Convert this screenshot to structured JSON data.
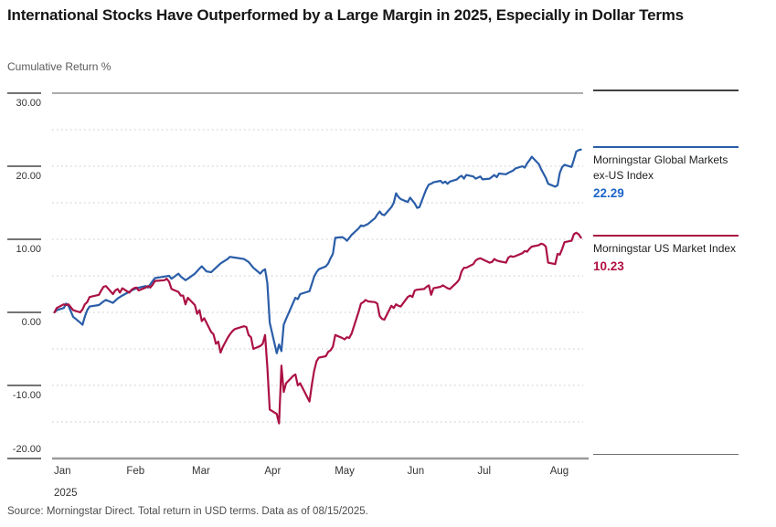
{
  "title": "International Stocks Have Outperformed by a Large Margin in 2025, Especially in Dollar Terms",
  "subtitle": "Cumulative Return %",
  "source": "Source: Morningstar Direct. Total return in USD terms. Data as of 08/15/2025.",
  "colors": {
    "ex_us_line": "#2a5da8",
    "ex_us_value": "#1c66c9",
    "us_line": "#ab1143",
    "us_value": "#b01242",
    "grid_dotted": "#d9d9d9",
    "frame_top": "#ababab",
    "frame_bottom": "#9a9a9a",
    "tick": "#474747",
    "axis_text": "#333333"
  },
  "legend": [
    {
      "label": "Morningstar Global Markets ex-US Index",
      "value": "22.29"
    },
    {
      "label": "Morningstar US Market Index",
      "value": "10.23"
    }
  ],
  "y_axis": {
    "ticks": [
      {
        "value": 30,
        "label": "30.00"
      },
      {
        "value": 20,
        "label": "20.00"
      },
      {
        "value": 10,
        "label": "10.00"
      },
      {
        "value": 0,
        "label": "0.00"
      },
      {
        "value": -10,
        "label": "-10.00"
      },
      {
        "value": -20,
        "label": "-20.00"
      }
    ]
  },
  "x_axis": {
    "year_label": "2025",
    "months": [
      {
        "label": "Jan",
        "day": 1
      },
      {
        "label": "Feb",
        "day": 32
      },
      {
        "label": "Mar",
        "day": 60
      },
      {
        "label": "Apr",
        "day": 91
      },
      {
        "label": "May",
        "day": 121
      },
      {
        "label": "Jun",
        "day": 152
      },
      {
        "label": "Jul",
        "day": 182
      },
      {
        "label": "Aug",
        "day": 213
      }
    ]
  },
  "chart_data": {
    "type": "line",
    "title": "International Stocks Have Outperformed by a Large Margin in 2025, Especially in Dollar Terms",
    "ylabel": "Cumulative Return %",
    "x_unit": "day_of_year_2025",
    "x_range_days": [
      1,
      230
    ],
    "ylim": [
      -20,
      30
    ],
    "y_tick_step": 10,
    "grid_step": 5,
    "grid_style": "dotted",
    "legend_position": "right",
    "series": [
      {
        "name": "Morningstar Global Markets ex-US Index",
        "color_key": "ex_us_line",
        "final_value": 22.29,
        "points": [
          [
            2,
            0
          ],
          [
            3,
            0.3
          ],
          [
            6,
            0.6
          ],
          [
            7,
            1.2
          ],
          [
            8,
            0.9
          ],
          [
            10,
            -0.6
          ],
          [
            13,
            -1.4
          ],
          [
            14,
            -1.7
          ],
          [
            15,
            -0.6
          ],
          [
            16,
            0.3
          ],
          [
            17,
            0.8
          ],
          [
            21,
            1.0
          ],
          [
            23,
            1.5
          ],
          [
            24,
            1.7
          ],
          [
            27,
            1.3
          ],
          [
            29,
            1.9
          ],
          [
            31,
            2.3
          ],
          [
            35,
            3.0
          ],
          [
            37,
            3.3
          ],
          [
            41,
            3.6
          ],
          [
            42,
            3.4
          ],
          [
            44,
            4.3
          ],
          [
            45,
            4.7
          ],
          [
            49,
            4.9
          ],
          [
            51,
            5.0
          ],
          [
            52,
            4.6
          ],
          [
            55,
            5.3
          ],
          [
            56,
            4.9
          ],
          [
            58,
            4.4
          ],
          [
            59,
            4.6
          ],
          [
            62,
            5.3
          ],
          [
            64,
            6.0
          ],
          [
            65,
            6.3
          ],
          [
            67,
            5.6
          ],
          [
            69,
            5.5
          ],
          [
            71,
            6.1
          ],
          [
            73,
            6.7
          ],
          [
            76,
            7.3
          ],
          [
            77,
            7.6
          ],
          [
            79,
            7.5
          ],
          [
            83,
            7.3
          ],
          [
            85,
            6.9
          ],
          [
            87,
            6.1
          ],
          [
            90,
            5.3
          ],
          [
            91,
            5.7
          ],
          [
            92,
            5.9
          ],
          [
            93,
            4.0
          ],
          [
            94,
            -1.4
          ],
          [
            97,
            -5.6
          ],
          [
            98,
            -4.4
          ],
          [
            99,
            -5.3
          ],
          [
            100,
            -1.7
          ],
          [
            101,
            -0.9
          ],
          [
            104,
            1.3
          ],
          [
            105,
            2.0
          ],
          [
            106,
            1.8
          ],
          [
            107,
            2.5
          ],
          [
            111,
            2.9
          ],
          [
            112,
            3.9
          ],
          [
            113,
            4.9
          ],
          [
            114,
            5.5
          ],
          [
            115,
            5.9
          ],
          [
            118,
            6.3
          ],
          [
            119,
            6.7
          ],
          [
            120,
            7.4
          ],
          [
            121,
            8.0
          ],
          [
            122,
            10.2
          ],
          [
            125,
            10.3
          ],
          [
            126,
            10.1
          ],
          [
            127,
            9.8
          ],
          [
            129,
            10.6
          ],
          [
            132,
            11.5
          ],
          [
            133,
            11.9
          ],
          [
            134,
            11.8
          ],
          [
            136,
            12.1
          ],
          [
            139,
            12.9
          ],
          [
            140,
            13.4
          ],
          [
            141,
            13.8
          ],
          [
            142,
            13.4
          ],
          [
            143,
            13.3
          ],
          [
            146,
            14.4
          ],
          [
            147,
            15.0
          ],
          [
            148,
            16.3
          ],
          [
            149,
            15.8
          ],
          [
            150,
            15.5
          ],
          [
            153,
            15.1
          ],
          [
            154,
            15.7
          ],
          [
            156,
            14.9
          ],
          [
            157,
            14.3
          ],
          [
            158,
            14.4
          ],
          [
            160,
            16.1
          ],
          [
            161,
            16.9
          ],
          [
            162,
            17.5
          ],
          [
            163,
            17.6
          ],
          [
            164,
            17.8
          ],
          [
            167,
            18.0
          ],
          [
            168,
            17.7
          ],
          [
            169,
            17.9
          ],
          [
            170,
            17.6
          ],
          [
            171,
            17.9
          ],
          [
            174,
            18.2
          ],
          [
            175,
            18.5
          ],
          [
            176,
            18.7
          ],
          [
            177,
            18.3
          ],
          [
            178,
            18.8
          ],
          [
            181,
            18.6
          ],
          [
            182,
            18.3
          ],
          [
            184,
            18.6
          ],
          [
            185,
            18.2
          ],
          [
            188,
            18.3
          ],
          [
            190,
            18.8
          ],
          [
            191,
            18.5
          ],
          [
            192,
            19.0
          ],
          [
            195,
            18.9
          ],
          [
            196,
            19.1
          ],
          [
            198,
            19.4
          ],
          [
            199,
            19.7
          ],
          [
            202,
            20.0
          ],
          [
            203,
            19.8
          ],
          [
            204,
            20.4
          ],
          [
            205,
            20.8
          ],
          [
            206,
            21.3
          ],
          [
            209,
            20.3
          ],
          [
            210,
            19.6
          ],
          [
            211,
            19.0
          ],
          [
            212,
            18.4
          ],
          [
            213,
            17.6
          ],
          [
            216,
            17.2
          ],
          [
            217,
            17.4
          ],
          [
            218,
            19.1
          ],
          [
            219,
            19.9
          ],
          [
            220,
            20.2
          ],
          [
            223,
            19.9
          ],
          [
            224,
            20.9
          ],
          [
            225,
            22.0
          ],
          [
            226,
            22.2
          ],
          [
            227,
            22.29
          ]
        ]
      },
      {
        "name": "Morningstar US Market Index",
        "color_key": "us_line",
        "final_value": 10.23,
        "points": [
          [
            2,
            0
          ],
          [
            3,
            0.6
          ],
          [
            6,
            1.1
          ],
          [
            7,
            1.0
          ],
          [
            8,
            1.1
          ],
          [
            10,
            0.3
          ],
          [
            13,
            0.0
          ],
          [
            14,
            0.4
          ],
          [
            15,
            1.1
          ],
          [
            16,
            1.4
          ],
          [
            17,
            2.1
          ],
          [
            21,
            2.4
          ],
          [
            22,
            3.0
          ],
          [
            23,
            3.5
          ],
          [
            24,
            3.6
          ],
          [
            27,
            2.5
          ],
          [
            28,
            3.0
          ],
          [
            29,
            3.2
          ],
          [
            30,
            2.7
          ],
          [
            31,
            3.3
          ],
          [
            34,
            2.7
          ],
          [
            35,
            3.1
          ],
          [
            36,
            3.3
          ],
          [
            37,
            3.4
          ],
          [
            38,
            3.0
          ],
          [
            41,
            3.4
          ],
          [
            42,
            3.6
          ],
          [
            43,
            3.4
          ],
          [
            44,
            3.8
          ],
          [
            45,
            4.3
          ],
          [
            49,
            4.4
          ],
          [
            50,
            4.6
          ],
          [
            51,
            4.2
          ],
          [
            52,
            3.2
          ],
          [
            55,
            2.8
          ],
          [
            56,
            2.3
          ],
          [
            57,
            2.3
          ],
          [
            58,
            1.1
          ],
          [
            59,
            2.0
          ],
          [
            62,
            1.0
          ],
          [
            63,
            -0.2
          ],
          [
            64,
            0.3
          ],
          [
            65,
            -1.2
          ],
          [
            66,
            -0.8
          ],
          [
            69,
            -2.7
          ],
          [
            70,
            -3.0
          ],
          [
            71,
            -4.3
          ],
          [
            72,
            -4.0
          ],
          [
            73,
            -5.5
          ],
          [
            74,
            -4.7
          ],
          [
            76,
            -3.5
          ],
          [
            77,
            -3.0
          ],
          [
            78,
            -2.6
          ],
          [
            79,
            -2.3
          ],
          [
            80,
            -2.2
          ],
          [
            83,
            -1.9
          ],
          [
            84,
            -2.0
          ],
          [
            85,
            -3.1
          ],
          [
            86,
            -3.4
          ],
          [
            87,
            -5.0
          ],
          [
            90,
            -4.6
          ],
          [
            91,
            -4.3
          ],
          [
            92,
            -3.1
          ],
          [
            93,
            -7.5
          ],
          [
            94,
            -13.3
          ],
          [
            97,
            -13.9
          ],
          [
            98,
            -15.2
          ],
          [
            99,
            -7.3
          ],
          [
            100,
            -10.9
          ],
          [
            101,
            -9.7
          ],
          [
            104,
            -8.7
          ],
          [
            105,
            -8.5
          ],
          [
            106,
            -10.0
          ],
          [
            107,
            -9.7
          ],
          [
            111,
            -12.2
          ],
          [
            112,
            -9.9
          ],
          [
            113,
            -8.0
          ],
          [
            114,
            -6.7
          ],
          [
            115,
            -6.2
          ],
          [
            118,
            -6.0
          ],
          [
            119,
            -5.4
          ],
          [
            120,
            -5.2
          ],
          [
            121,
            -4.7
          ],
          [
            122,
            -3.1
          ],
          [
            125,
            -3.5
          ],
          [
            126,
            -3.7
          ],
          [
            127,
            -3.4
          ],
          [
            128,
            -3.5
          ],
          [
            129,
            -2.9
          ],
          [
            132,
            0.1
          ],
          [
            133,
            1.2
          ],
          [
            134,
            1.4
          ],
          [
            135,
            1.7
          ],
          [
            136,
            1.5
          ],
          [
            139,
            1.4
          ],
          [
            140,
            1.2
          ],
          [
            141,
            -0.5
          ],
          [
            142,
            -0.9
          ],
          [
            143,
            -1.0
          ],
          [
            146,
            0.9
          ],
          [
            147,
            0.6
          ],
          [
            148,
            1.1
          ],
          [
            149,
            0.9
          ],
          [
            150,
            0.8
          ],
          [
            153,
            2.1
          ],
          [
            154,
            2.3
          ],
          [
            155,
            2.1
          ],
          [
            156,
            3.0
          ],
          [
            157,
            3.1
          ],
          [
            160,
            3.2
          ],
          [
            161,
            3.5
          ],
          [
            162,
            3.7
          ],
          [
            163,
            2.4
          ],
          [
            164,
            3.3
          ],
          [
            167,
            3.5
          ],
          [
            168,
            3.7
          ],
          [
            169,
            3.5
          ],
          [
            170,
            3.3
          ],
          [
            171,
            3.2
          ],
          [
            174,
            4.1
          ],
          [
            175,
            4.5
          ],
          [
            176,
            5.6
          ],
          [
            177,
            6.1
          ],
          [
            178,
            6.1
          ],
          [
            181,
            6.6
          ],
          [
            182,
            7.1
          ],
          [
            183,
            7.3
          ],
          [
            184,
            7.4
          ],
          [
            188,
            6.8
          ],
          [
            189,
            6.9
          ],
          [
            190,
            7.3
          ],
          [
            191,
            7.1
          ],
          [
            192,
            7.0
          ],
          [
            195,
            6.8
          ],
          [
            196,
            7.5
          ],
          [
            197,
            7.7
          ],
          [
            198,
            7.6
          ],
          [
            199,
            7.7
          ],
          [
            202,
            8.1
          ],
          [
            203,
            8.4
          ],
          [
            204,
            8.3
          ],
          [
            205,
            8.7
          ],
          [
            206,
            9.0
          ],
          [
            209,
            9.2
          ],
          [
            210,
            9.4
          ],
          [
            211,
            9.3
          ],
          [
            212,
            9.0
          ],
          [
            213,
            6.8
          ],
          [
            216,
            6.6
          ],
          [
            217,
            8.0
          ],
          [
            218,
            7.9
          ],
          [
            219,
            8.7
          ],
          [
            220,
            9.6
          ],
          [
            223,
            9.8
          ],
          [
            224,
            10.7
          ],
          [
            225,
            10.9
          ],
          [
            226,
            10.7
          ],
          [
            227,
            10.23
          ]
        ]
      }
    ]
  }
}
